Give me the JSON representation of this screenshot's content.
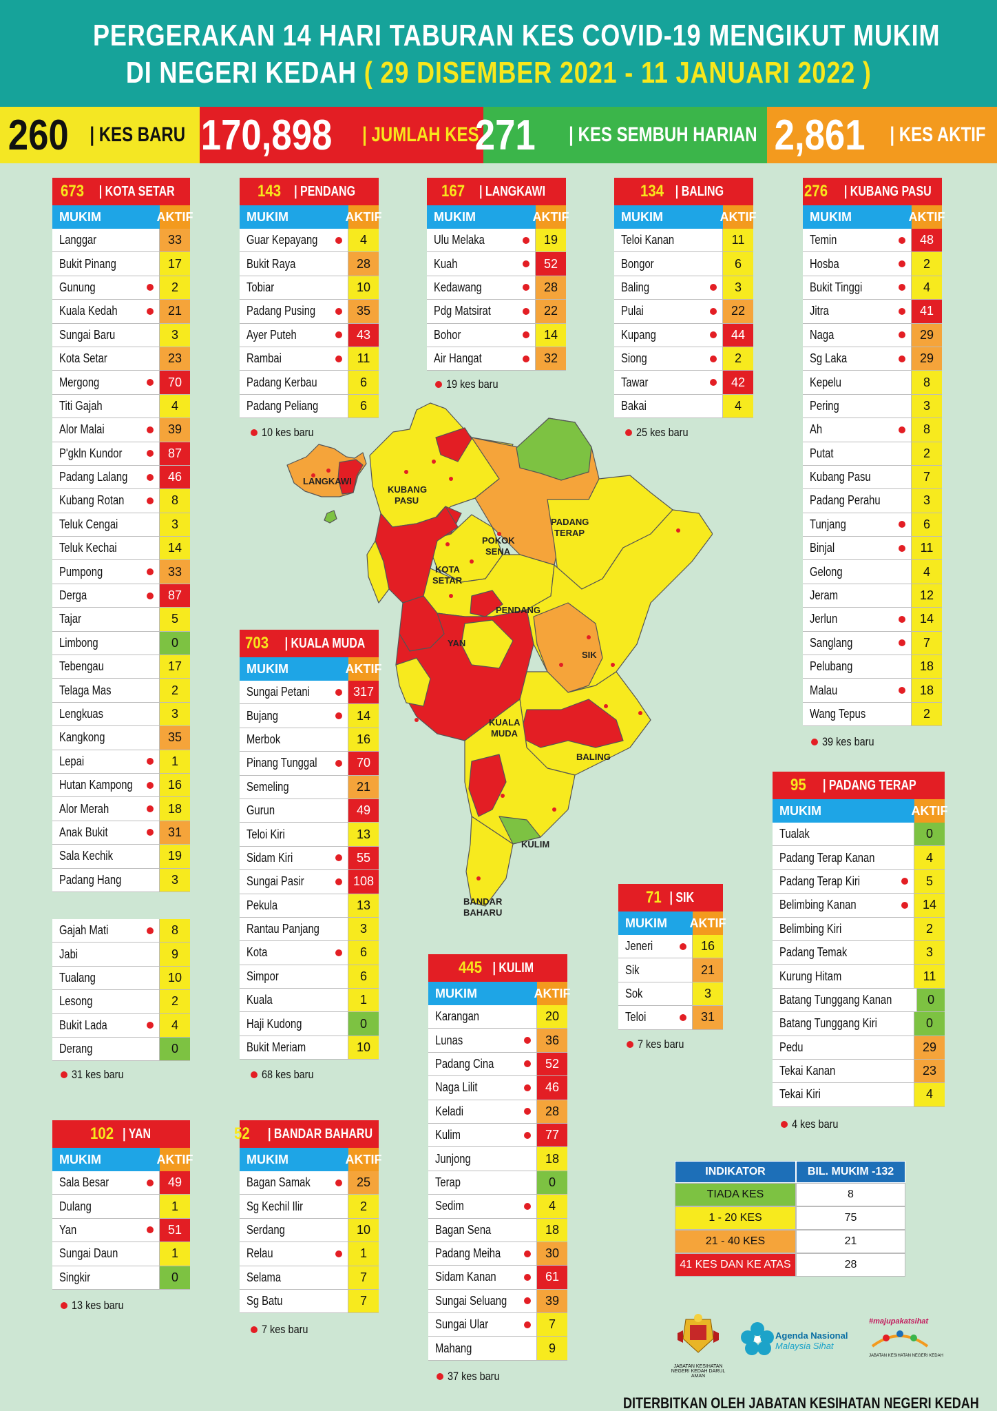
{
  "header": {
    "line1": "PERGERAKAN 14 HARI TABURAN KES COVID-19 MENGIKUT MUKIM",
    "line2_prefix": "DI NEGERI KEDAH",
    "line2_dates": "( 29 DISEMBER 2021 - 11 JANUARI 2022 )"
  },
  "stats": {
    "kes_baru": {
      "value": "260",
      "label": "| KES BARU"
    },
    "jumlah_kes": {
      "value": "170,898",
      "label": "| JUMLAH KES"
    },
    "kes_sembuh": {
      "value": "271",
      "label": "| KES SEMBUH HARIAN"
    },
    "kes_aktif": {
      "value": "2,861",
      "label": "| KES AKTIF"
    }
  },
  "col_mukim": "MUKIM",
  "col_aktif": "AKTIF",
  "districts": {
    "kota_setar": {
      "total": "673",
      "name": "| KOTA SETAR",
      "rows": [
        {
          "n": "Langgar",
          "v": "33",
          "c": "o",
          "d": false
        },
        {
          "n": "Bukit Pinang",
          "v": "17",
          "c": "y",
          "d": false
        },
        {
          "n": "Gunung",
          "v": "2",
          "c": "y",
          "d": true
        },
        {
          "n": "Kuala Kedah",
          "v": "21",
          "c": "o",
          "d": true
        },
        {
          "n": "Sungai Baru",
          "v": "3",
          "c": "y",
          "d": false
        },
        {
          "n": "Kota Setar",
          "v": "23",
          "c": "o",
          "d": false
        },
        {
          "n": "Mergong",
          "v": "70",
          "c": "r",
          "d": true
        },
        {
          "n": "Titi Gajah",
          "v": "4",
          "c": "y",
          "d": false
        },
        {
          "n": "Alor Malai",
          "v": "39",
          "c": "o",
          "d": true
        },
        {
          "n": "P'gkln Kundor",
          "v": "87",
          "c": "r",
          "d": true
        },
        {
          "n": "Padang Lalang",
          "v": "46",
          "c": "r",
          "d": true
        },
        {
          "n": "Kubang Rotan",
          "v": "8",
          "c": "y",
          "d": true
        },
        {
          "n": "Teluk Cengai",
          "v": "3",
          "c": "y",
          "d": false
        },
        {
          "n": "Teluk Kechai",
          "v": "14",
          "c": "y",
          "d": false
        },
        {
          "n": "Pumpong",
          "v": "33",
          "c": "o",
          "d": true
        },
        {
          "n": "Derga",
          "v": "87",
          "c": "r",
          "d": true
        },
        {
          "n": "Tajar",
          "v": "5",
          "c": "y",
          "d": false
        },
        {
          "n": "Limbong",
          "v": "0",
          "c": "g",
          "d": false
        },
        {
          "n": "Tebengau",
          "v": "17",
          "c": "y",
          "d": false
        },
        {
          "n": "Telaga Mas",
          "v": "2",
          "c": "y",
          "d": false
        },
        {
          "n": "Lengkuas",
          "v": "3",
          "c": "y",
          "d": false
        },
        {
          "n": "Kangkong",
          "v": "35",
          "c": "o",
          "d": false
        },
        {
          "n": "Lepai",
          "v": "1",
          "c": "y",
          "d": true
        },
        {
          "n": "Hutan Kampong",
          "v": "16",
          "c": "y",
          "d": true
        },
        {
          "n": "Alor Merah",
          "v": "18",
          "c": "y",
          "d": true
        },
        {
          "n": "Anak Bukit",
          "v": "31",
          "c": "o",
          "d": true
        },
        {
          "n": "Sala Kechik",
          "v": "19",
          "c": "y",
          "d": false
        },
        {
          "n": "Padang Hang",
          "v": "3",
          "c": "y",
          "d": false
        }
      ],
      "rows2": [
        {
          "n": "Gajah Mati",
          "v": "8",
          "c": "y",
          "d": true
        },
        {
          "n": "Jabi",
          "v": "9",
          "c": "y",
          "d": false
        },
        {
          "n": "Tualang",
          "v": "10",
          "c": "y",
          "d": false
        },
        {
          "n": "Lesong",
          "v": "2",
          "c": "y",
          "d": false
        },
        {
          "n": "Bukit Lada",
          "v": "4",
          "c": "y",
          "d": true
        },
        {
          "n": "Derang",
          "v": "0",
          "c": "g",
          "d": false
        }
      ],
      "note": "31 kes baru"
    },
    "pendang": {
      "total": "143",
      "name": "| PENDANG",
      "rows": [
        {
          "n": "Guar Kepayang",
          "v": "4",
          "c": "y",
          "d": true
        },
        {
          "n": "Bukit Raya",
          "v": "28",
          "c": "o",
          "d": false
        },
        {
          "n": "Tobiar",
          "v": "10",
          "c": "y",
          "d": false
        },
        {
          "n": "Padang Pusing",
          "v": "35",
          "c": "o",
          "d": true
        },
        {
          "n": "Ayer Puteh",
          "v": "43",
          "c": "r",
          "d": true
        },
        {
          "n": "Rambai",
          "v": "11",
          "c": "y",
          "d": true
        },
        {
          "n": "Padang Kerbau",
          "v": "6",
          "c": "y",
          "d": false
        },
        {
          "n": "Padang Peliang",
          "v": "6",
          "c": "y",
          "d": false
        }
      ],
      "note": "10 kes baru"
    },
    "langkawi": {
      "total": "167",
      "name": "| LANGKAWI",
      "rows": [
        {
          "n": "Ulu Melaka",
          "v": "19",
          "c": "y",
          "d": true
        },
        {
          "n": "Kuah",
          "v": "52",
          "c": "r",
          "d": true
        },
        {
          "n": "Kedawang",
          "v": "28",
          "c": "o",
          "d": true
        },
        {
          "n": "Pdg Matsirat",
          "v": "22",
          "c": "o",
          "d": true
        },
        {
          "n": "Bohor",
          "v": "14",
          "c": "y",
          "d": true
        },
        {
          "n": "Air Hangat",
          "v": "32",
          "c": "o",
          "d": true
        }
      ],
      "note": "19 kes baru"
    },
    "baling": {
      "total": "134",
      "name": "| BALING",
      "rows": [
        {
          "n": "Teloi Kanan",
          "v": "11",
          "c": "y",
          "d": false
        },
        {
          "n": "Bongor",
          "v": "6",
          "c": "y",
          "d": false
        },
        {
          "n": "Baling",
          "v": "3",
          "c": "y",
          "d": true
        },
        {
          "n": "Pulai",
          "v": "22",
          "c": "o",
          "d": true
        },
        {
          "n": "Kupang",
          "v": "44",
          "c": "r",
          "d": true
        },
        {
          "n": "Siong",
          "v": "2",
          "c": "y",
          "d": true
        },
        {
          "n": "Tawar",
          "v": "42",
          "c": "r",
          "d": true
        },
        {
          "n": "Bakai",
          "v": "4",
          "c": "y",
          "d": false
        }
      ],
      "note": "25 kes baru"
    },
    "kubang_pasu": {
      "total": "276",
      "name": "| KUBANG PASU",
      "rows": [
        {
          "n": "Temin",
          "v": "48",
          "c": "r",
          "d": true
        },
        {
          "n": "Hosba",
          "v": "2",
          "c": "y",
          "d": true
        },
        {
          "n": "Bukit Tinggi",
          "v": "4",
          "c": "y",
          "d": true
        },
        {
          "n": "Jitra",
          "v": "41",
          "c": "r",
          "d": true
        },
        {
          "n": "Naga",
          "v": "29",
          "c": "o",
          "d": true
        },
        {
          "n": "Sg Laka",
          "v": "29",
          "c": "o",
          "d": true
        },
        {
          "n": "Kepelu",
          "v": "8",
          "c": "y",
          "d": false
        },
        {
          "n": "Pering",
          "v": "3",
          "c": "y",
          "d": false
        },
        {
          "n": "Ah",
          "v": "8",
          "c": "y",
          "d": true
        },
        {
          "n": "Putat",
          "v": "2",
          "c": "y",
          "d": false
        },
        {
          "n": "Kubang Pasu",
          "v": "7",
          "c": "y",
          "d": false
        },
        {
          "n": "Padang Perahu",
          "v": "3",
          "c": "y",
          "d": false
        },
        {
          "n": "Tunjang",
          "v": "6",
          "c": "y",
          "d": true
        },
        {
          "n": "Binjal",
          "v": "11",
          "c": "y",
          "d": true
        },
        {
          "n": "Gelong",
          "v": "4",
          "c": "y",
          "d": false
        },
        {
          "n": "Jeram",
          "v": "12",
          "c": "y",
          "d": false
        },
        {
          "n": "Jerlun",
          "v": "14",
          "c": "y",
          "d": true
        },
        {
          "n": "Sanglang",
          "v": "7",
          "c": "y",
          "d": true
        },
        {
          "n": "Pelubang",
          "v": "18",
          "c": "y",
          "d": false
        },
        {
          "n": "Malau",
          "v": "18",
          "c": "y",
          "d": true
        },
        {
          "n": "Wang Tepus",
          "v": "2",
          "c": "y",
          "d": false
        }
      ],
      "note": "39 kes baru"
    },
    "kuala_muda": {
      "total": "703",
      "name": "| KUALA MUDA",
      "rows": [
        {
          "n": "Sungai Petani",
          "v": "317",
          "c": "r",
          "d": true
        },
        {
          "n": "Bujang",
          "v": "14",
          "c": "y",
          "d": true
        },
        {
          "n": "Merbok",
          "v": "16",
          "c": "y",
          "d": false
        },
        {
          "n": "Pinang Tunggal",
          "v": "70",
          "c": "r",
          "d": true
        },
        {
          "n": "Semeling",
          "v": "21",
          "c": "o",
          "d": false
        },
        {
          "n": "Gurun",
          "v": "49",
          "c": "r",
          "d": false
        },
        {
          "n": "Teloi Kiri",
          "v": "13",
          "c": "y",
          "d": false
        },
        {
          "n": "Sidam Kiri",
          "v": "55",
          "c": "r",
          "d": true
        },
        {
          "n": "Sungai Pasir",
          "v": "108",
          "c": "r",
          "d": true
        },
        {
          "n": "Pekula",
          "v": "13",
          "c": "y",
          "d": false
        },
        {
          "n": "Rantau Panjang",
          "v": "3",
          "c": "y",
          "d": false
        },
        {
          "n": "Kota",
          "v": "6",
          "c": "y",
          "d": true
        },
        {
          "n": "Simpor",
          "v": "6",
          "c": "y",
          "d": false
        },
        {
          "n": "Kuala",
          "v": "1",
          "c": "y",
          "d": false
        },
        {
          "n": "Haji Kudong",
          "v": "0",
          "c": "g",
          "d": false
        },
        {
          "n": "Bukit Meriam",
          "v": "10",
          "c": "y",
          "d": false
        }
      ],
      "note": "68 kes baru"
    },
    "padang_terap": {
      "total": "95",
      "name": "| PADANG TERAP",
      "rows": [
        {
          "n": "Tualak",
          "v": "0",
          "c": "g",
          "d": false
        },
        {
          "n": "Padang Terap Kanan",
          "v": "4",
          "c": "y",
          "d": false
        },
        {
          "n": "Padang Terap Kiri",
          "v": "5",
          "c": "y",
          "d": true
        },
        {
          "n": "Belimbing Kanan",
          "v": "14",
          "c": "y",
          "d": true
        },
        {
          "n": "Belimbing Kiri",
          "v": "2",
          "c": "y",
          "d": false
        },
        {
          "n": "Padang Temak",
          "v": "3",
          "c": "y",
          "d": false
        },
        {
          "n": "Kurung Hitam",
          "v": "11",
          "c": "y",
          "d": false
        },
        {
          "n": "Batang Tunggang Kanan",
          "v": "0",
          "c": "g",
          "d": false
        },
        {
          "n": "Batang Tunggang Kiri",
          "v": "0",
          "c": "g",
          "d": false
        },
        {
          "n": "Pedu",
          "v": "29",
          "c": "o",
          "d": false
        },
        {
          "n": "Tekai Kanan",
          "v": "23",
          "c": "o",
          "d": false
        },
        {
          "n": "Tekai Kiri",
          "v": "4",
          "c": "y",
          "d": false
        }
      ],
      "note": "4 kes baru"
    },
    "sik": {
      "total": "71",
      "name": "| SIK",
      "rows": [
        {
          "n": "Jeneri",
          "v": "16",
          "c": "y",
          "d": true
        },
        {
          "n": "Sik",
          "v": "21",
          "c": "o",
          "d": false
        },
        {
          "n": "Sok",
          "v": "3",
          "c": "y",
          "d": false
        },
        {
          "n": "Teloi",
          "v": "31",
          "c": "o",
          "d": true
        }
      ],
      "note": "7 kes baru"
    },
    "kulim": {
      "total": "445",
      "name": "| KULIM",
      "rows": [
        {
          "n": "Karangan",
          "v": "20",
          "c": "y",
          "d": false
        },
        {
          "n": "Lunas",
          "v": "36",
          "c": "o",
          "d": true
        },
        {
          "n": "Padang Cina",
          "v": "52",
          "c": "r",
          "d": true
        },
        {
          "n": "Naga Lilit",
          "v": "46",
          "c": "r",
          "d": true
        },
        {
          "n": "Keladi",
          "v": "28",
          "c": "o",
          "d": true
        },
        {
          "n": "Kulim",
          "v": "77",
          "c": "r",
          "d": true
        },
        {
          "n": "Junjong",
          "v": "18",
          "c": "y",
          "d": false
        },
        {
          "n": "Terap",
          "v": "0",
          "c": "g",
          "d": false
        },
        {
          "n": "Sedim",
          "v": "4",
          "c": "y",
          "d": true
        },
        {
          "n": "Bagan Sena",
          "v": "18",
          "c": "y",
          "d": false
        },
        {
          "n": "Padang Meiha",
          "v": "30",
          "c": "o",
          "d": true
        },
        {
          "n": "Sidam Kanan",
          "v": "61",
          "c": "r",
          "d": true
        },
        {
          "n": "Sungai Seluang",
          "v": "39",
          "c": "o",
          "d": true
        },
        {
          "n": "Sungai Ular",
          "v": "7",
          "c": "y",
          "d": true
        },
        {
          "n": "Mahang",
          "v": "9",
          "c": "y",
          "d": false
        }
      ],
      "note": "37 kes baru"
    },
    "yan": {
      "total": "102",
      "name": "| YAN",
      "rows": [
        {
          "n": "Sala Besar",
          "v": "49",
          "c": "r",
          "d": true
        },
        {
          "n": "Dulang",
          "v": "1",
          "c": "y",
          "d": false
        },
        {
          "n": "Yan",
          "v": "51",
          "c": "r",
          "d": true
        },
        {
          "n": "Sungai Daun",
          "v": "1",
          "c": "y",
          "d": false
        },
        {
          "n": "Singkir",
          "v": "0",
          "c": "g",
          "d": false
        }
      ],
      "note": "13 kes baru"
    },
    "bandar_baharu": {
      "total": "52",
      "name": "| BANDAR BAHARU",
      "rows": [
        {
          "n": "Bagan Samak",
          "v": "25",
          "c": "o",
          "d": true
        },
        {
          "n": "Sg Kechil Ilir",
          "v": "2",
          "c": "y",
          "d": false
        },
        {
          "n": "Serdang",
          "v": "10",
          "c": "y",
          "d": false
        },
        {
          "n": "Relau",
          "v": "1",
          "c": "y",
          "d": true
        },
        {
          "n": "Selama",
          "v": "7",
          "c": "y",
          "d": false
        },
        {
          "n": "Sg Batu",
          "v": "7",
          "c": "y",
          "d": false
        }
      ],
      "note": "7 kes baru"
    }
  },
  "map_labels": {
    "langkawi": "LANGKAWI",
    "kubang_pasu_1": "KUBANG",
    "kubang_pasu_2": "PASU",
    "padang_terap_1": "PADANG",
    "padang_terap_2": "TERAP",
    "pokok_sena_1": "POKOK",
    "pokok_sena_2": "SENA",
    "kota_setar_1": "KOTA",
    "kota_setar_2": "SETAR",
    "pendang": "PENDANG",
    "yan": "YAN",
    "sik": "SIK",
    "kuala_muda_1": "KUALA",
    "kuala_muda_2": "MUDA",
    "baling": "BALING",
    "kulim": "KULIM",
    "bandar_baharu_1": "BANDAR",
    "bandar_baharu_2": "BAHARU"
  },
  "legend": {
    "h1": "INDIKATOR",
    "h2": "BIL. MUKIM -132",
    "rows": [
      {
        "label": "TIADA KES",
        "count": "8",
        "color": "#7dc242"
      },
      {
        "label": "1 - 20 KES",
        "count": "75",
        "color": "#f7ea1e"
      },
      {
        "label": "21 - 40 KES",
        "count": "21",
        "color": "#f5a43a"
      },
      {
        "label": "41 KES DAN KE ATAS",
        "count": "28",
        "color": "#e31e24"
      }
    ]
  },
  "logos": {
    "jkn": "JABATAN KESIHATAN NEGERI KEDAH DARUL AMAN",
    "agenda_1": "Agenda Nasional",
    "agenda_2": "Malaysia Sihat",
    "mp_1": "#majupakatsihat",
    "mp_2": "JABATAN KESIHATAN NEGERI KEDAH"
  },
  "footer": "DITERBITKAN OLEH JABATAN KESIHATAN NEGERI KEDAH"
}
